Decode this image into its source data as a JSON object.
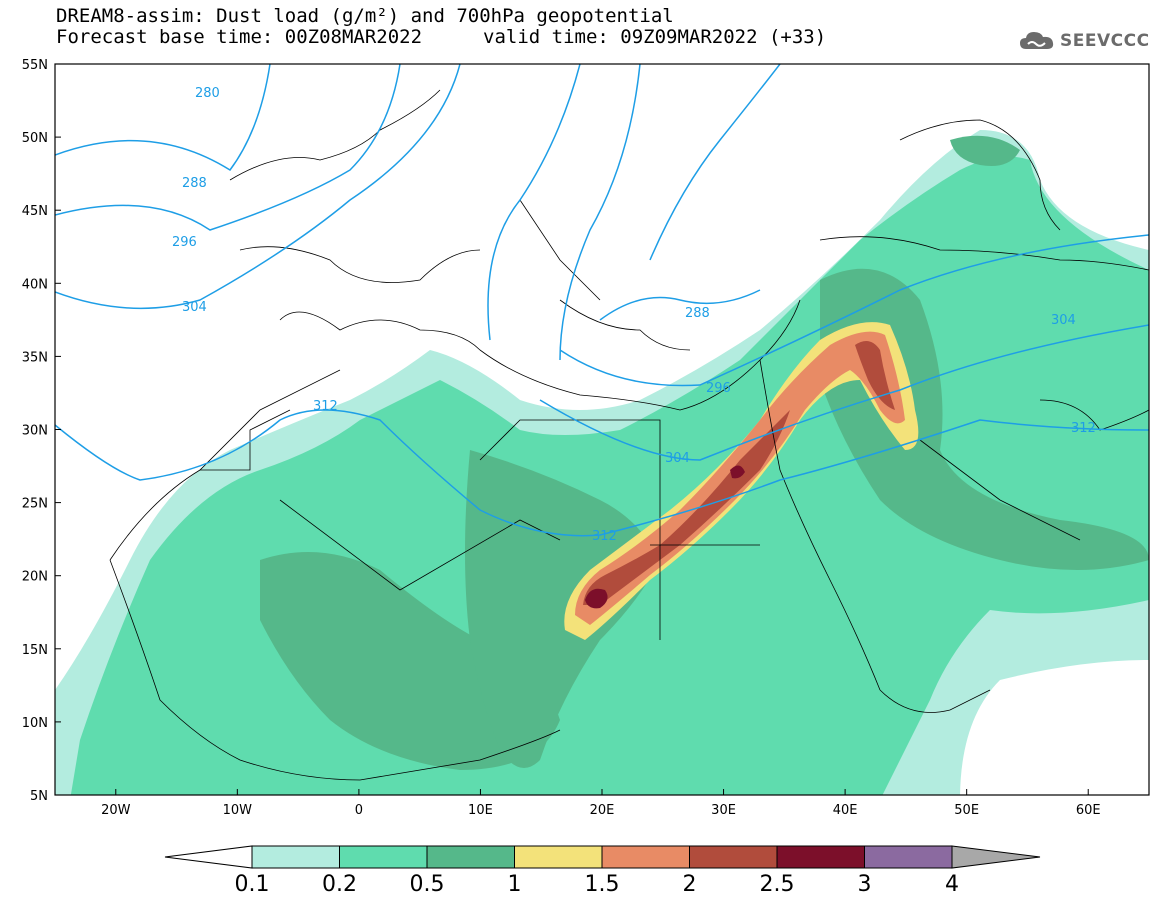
{
  "title": {
    "line1": "DREAM8-assim: Dust load (g/m²) and 700hPa geopotential",
    "line2_left": "Forecast base time: 00Z08MAR2022",
    "line2_right": "valid time: 09Z09MAR2022 (+33)"
  },
  "logo": {
    "text": "SEEVCCC",
    "icon": "cloud-icon"
  },
  "map": {
    "lat_ticks": [
      "55N",
      "50N",
      "45N",
      "40N",
      "35N",
      "30N",
      "25N",
      "20N",
      "15N",
      "10N",
      "5N"
    ],
    "lon_ticks": [
      "20W",
      "10W",
      "0",
      "10E",
      "20E",
      "30E",
      "40E",
      "50E",
      "60E"
    ],
    "lat_range": [
      5,
      55
    ],
    "lon_range": [
      -25,
      65
    ],
    "contour_labels": [
      "280",
      "288",
      "296",
      "304",
      "312",
      "288",
      "296",
      "304",
      "312",
      "304",
      "312"
    ]
  },
  "colorbar": {
    "labels": [
      "0.1",
      "0.2",
      "0.5",
      "1",
      "1.5",
      "2",
      "2.5",
      "3",
      "4"
    ],
    "colors": [
      "#ffffff",
      "#b3ecdf",
      "#5fdcae",
      "#55b88a",
      "#f3e27a",
      "#e88b65",
      "#b14c3c",
      "#7c0f2a",
      "#8b6aa0",
      "#a8a8a8"
    ]
  },
  "dust_colors": {
    "c01": "#b3ecdf",
    "c02": "#5fdcae",
    "c05": "#55b88a",
    "c1": "#f3e27a",
    "c15": "#e88b65",
    "c2": "#b14c3c",
    "c25": "#7c0f2a"
  },
  "contour_color": "#1e9ee6"
}
